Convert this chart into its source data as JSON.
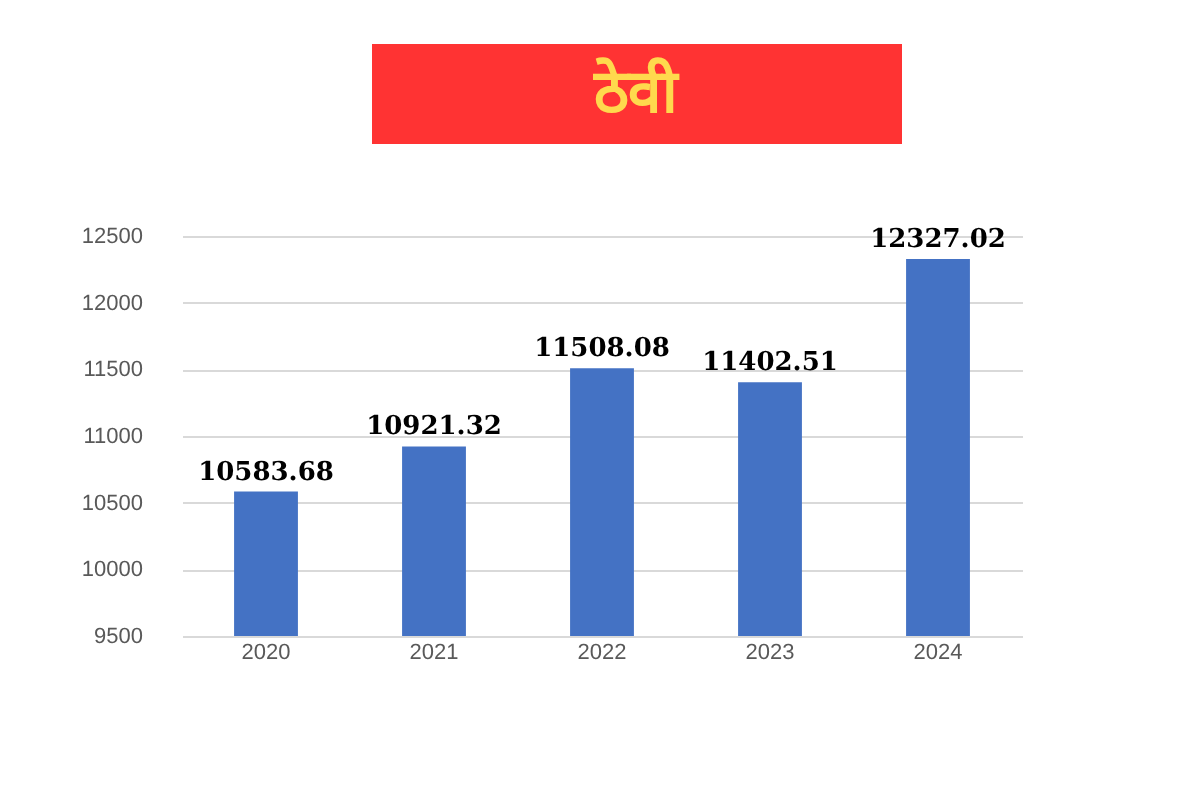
{
  "chart_data": {
    "type": "bar",
    "title": "ठेवी",
    "categories": [
      "2020",
      "2021",
      "2022",
      "2023",
      "2024"
    ],
    "values": [
      10583.68,
      10921.32,
      11508.08,
      11402.51,
      12327.02
    ],
    "color": "#4472c4",
    "ylim": [
      9500,
      12500
    ],
    "yticks": [
      9500,
      10000,
      10500,
      11000,
      11500,
      12000,
      12500
    ],
    "grid": "y",
    "data_labels": true
  }
}
